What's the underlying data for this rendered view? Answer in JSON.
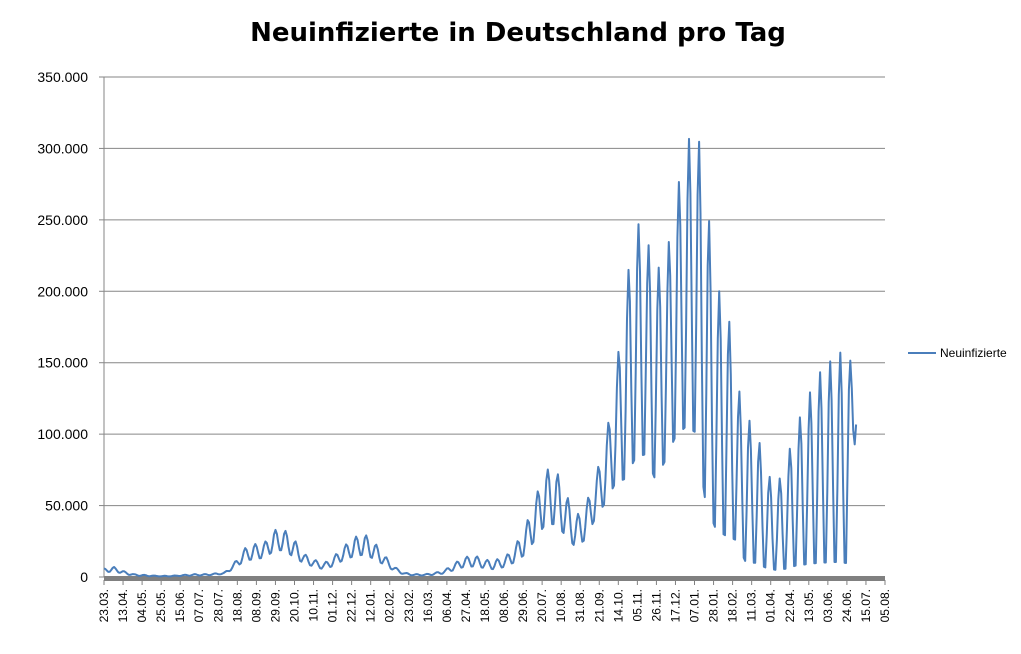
{
  "chart_data": {
    "type": "line",
    "title": "Neuinfizierte in Deutschland pro Tag",
    "xlabel": "",
    "ylabel": "",
    "ylim": [
      0,
      350000
    ],
    "y_ticks": [
      "0",
      "50.000",
      "100.000",
      "150.000",
      "200.000",
      "250.000",
      "300.000",
      "350.000"
    ],
    "x_tick_labels": [
      "23.03.",
      "13.04.",
      "04.05.",
      "25.05.",
      "15.06.",
      "07.07.",
      "28.07.",
      "18.08.",
      "08.09.",
      "29.09.",
      "20.10.",
      "10.11.",
      "01.12.",
      "22.12.",
      "12.01.",
      "02.02.",
      "23.02.",
      "16.03.",
      "06.04.",
      "27.04.",
      "18.05.",
      "08.06.",
      "29.06.",
      "20.07.",
      "10.08.",
      "31.08.",
      "21.09.",
      "14.10.",
      "05.11.",
      "26.11.",
      "17.12.",
      "07.01.",
      "28.01.",
      "18.02.",
      "11.03.",
      "01.04.",
      "22.04.",
      "13.05.",
      "03.06.",
      "24.06.",
      "15.07.",
      "05.08."
    ],
    "grid": true,
    "legend_position": "right",
    "line_color": "#4a7ebb",
    "series": [
      {
        "name": "Neuinfizierte",
        "envelope_high": [
          6000,
          7000,
          4000,
          2000,
          1500,
          1000,
          800,
          1000,
          1500,
          2000,
          2000,
          2500,
          3000,
          10000,
          20000,
          23000,
          24000,
          33000,
          33000,
          26000,
          16000,
          12000,
          10000,
          15000,
          22000,
          28000,
          30000,
          24000,
          15000,
          7000,
          3000,
          2000,
          2000,
          3000,
          5000,
          10000,
          14000,
          15000,
          12000,
          12000,
          14000,
          22000,
          35000,
          55000,
          75000,
          76000,
          60000,
          42000,
          50000,
          70000,
          95000,
          140000,
          200000,
          250000,
          240000,
          215000,
          220000,
          265000,
          300000,
          320000,
          275000,
          200000,
          200000,
          140000,
          112000,
          105000,
          75000,
          62000,
          80000,
          105000,
          122000,
          140000,
          148000,
          155000,
          160000,
          140000
        ],
        "envelope_low": [
          3000,
          4000,
          2000,
          1000,
          500,
          500,
          300,
          500,
          800,
          1000,
          1000,
          1500,
          2000,
          6000,
          11000,
          12000,
          13000,
          18000,
          18000,
          13000,
          9000,
          7000,
          5000,
          8000,
          12000,
          14000,
          15000,
          12000,
          8000,
          4000,
          1500,
          1000,
          1000,
          1500,
          2500,
          5000,
          7000,
          7000,
          6000,
          5000,
          7000,
          10000,
          15000,
          25000,
          35000,
          35000,
          28000,
          20000,
          25000,
          40000,
          50000,
          62000,
          62000,
          75000,
          78000,
          60000,
          75000,
          90000,
          95000,
          90000,
          40000,
          25000,
          20000,
          20000,
          5000,
          5000,
          3000,
          2000,
          2000,
          3000,
          3000,
          3000,
          3000,
          3000,
          2000,
          105000
        ],
        "envelope_note_days_per_point": 7,
        "period_days": 7,
        "total_days": 522
      }
    ]
  }
}
